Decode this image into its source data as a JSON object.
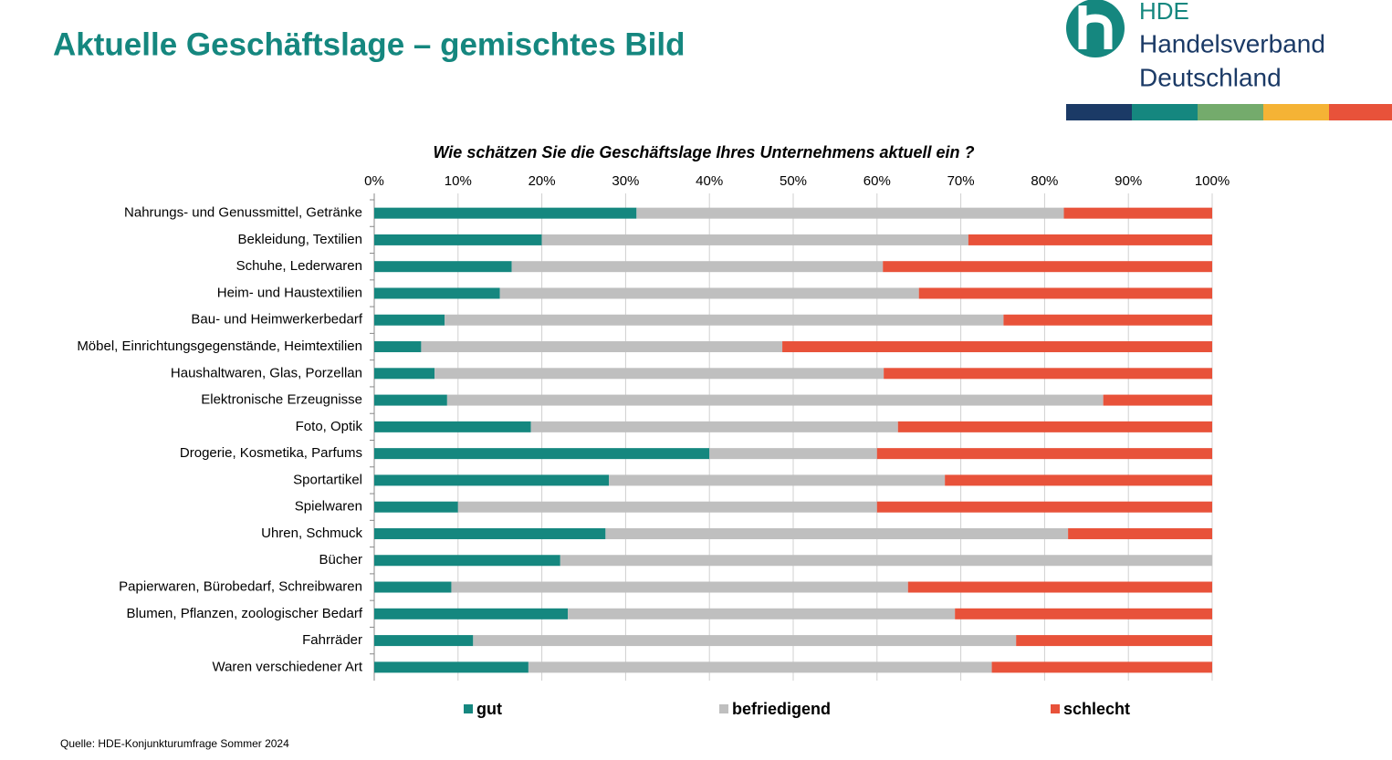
{
  "header": {
    "title": "Aktuelle Geschäftslage – gemischtes Bild"
  },
  "logo": {
    "short": "HDE",
    "line1": "Handelsverband",
    "line2": "Deutschland"
  },
  "footer": {
    "source": "Quelle: HDE-Konjunkturumfrage Sommer 2024"
  },
  "chart_data": {
    "type": "stacked-bar-horizontal",
    "title": "Wie schätzen Sie die Geschäftslage Ihres Unternehmens aktuell ein ?",
    "categories": [
      "Nahrungs- und Genussmittel, Getränke",
      "Bekleidung, Textilien",
      "Schuhe, Lederwaren",
      "Heim- und Haustextilien",
      "Bau- und Heimwerkerbedarf",
      "Möbel, Einrichtungsgegenstände, Heimtextilien",
      "Haushaltwaren, Glas, Porzellan",
      "Elektronische Erzeugnisse",
      "Foto, Optik",
      "Drogerie, Kosmetika, Parfums",
      "Sportartikel",
      "Spielwaren",
      "Uhren, Schmuck",
      "Bücher",
      "Papierwaren, Bürobedarf, Schreibwaren",
      "Blumen, Pflanzen, zoologischer Bedarf",
      "Fahrräder",
      "Waren verschiedener Art"
    ],
    "series": [
      {
        "name": "gut",
        "color": "#15877f",
        "values": [
          31.3,
          20.0,
          16.4,
          15.0,
          8.4,
          5.6,
          7.2,
          8.7,
          18.7,
          40.0,
          28.0,
          10.0,
          27.6,
          22.2,
          9.2,
          23.1,
          11.8,
          18.4
        ]
      },
      {
        "name": "befriedigend",
        "color": "#bfbfbf",
        "values": [
          51.0,
          50.9,
          44.3,
          50.0,
          66.7,
          43.1,
          53.6,
          78.3,
          43.8,
          20.0,
          40.1,
          50.0,
          55.2,
          77.8,
          54.5,
          46.2,
          64.8,
          55.3
        ]
      },
      {
        "name": "schlecht",
        "color": "#e8523a",
        "values": [
          17.7,
          29.1,
          39.3,
          35.0,
          24.9,
          51.3,
          39.2,
          13.0,
          37.5,
          40.0,
          31.9,
          40.0,
          17.2,
          0,
          36.3,
          30.7,
          23.4,
          26.3
        ]
      }
    ],
    "xlim": [
      0,
      100
    ],
    "xticks": [
      {
        "value": 0,
        "label": "0%"
      },
      {
        "value": 10,
        "label": "10%"
      },
      {
        "value": 20,
        "label": "20%"
      },
      {
        "value": 30,
        "label": "30%"
      },
      {
        "value": 40,
        "label": "40%"
      },
      {
        "value": 50,
        "label": "50%"
      },
      {
        "value": 60,
        "label": "60%"
      },
      {
        "value": 70,
        "label": "70%"
      },
      {
        "value": 80,
        "label": "80%"
      },
      {
        "value": 90,
        "label": "90%"
      },
      {
        "value": 100,
        "label": "100%"
      }
    ],
    "grid": true,
    "legend": "bottom"
  }
}
